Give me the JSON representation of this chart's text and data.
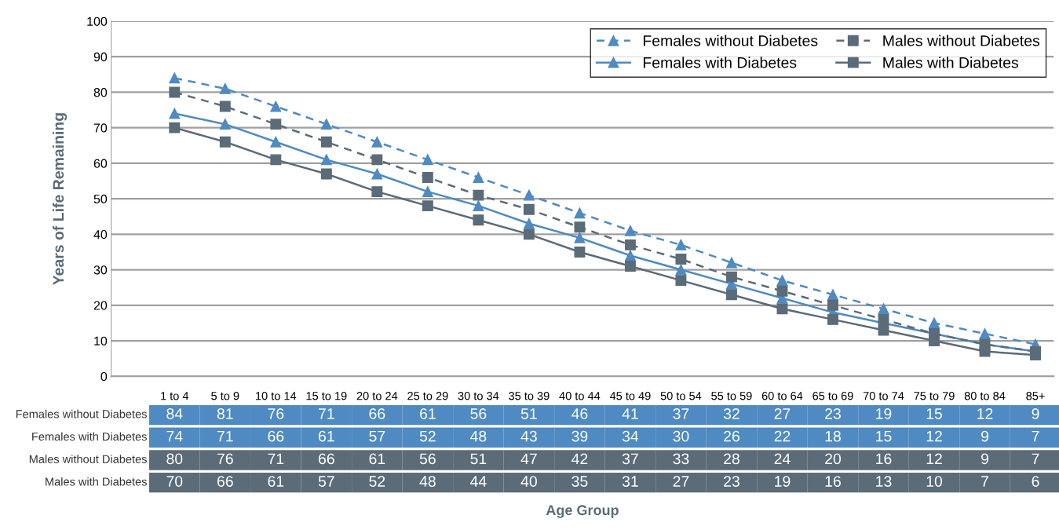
{
  "chart_data": {
    "type": "line",
    "ylabel": "Years of Life Remaining",
    "annotations": [
      "Age Group"
    ],
    "categories": [
      "1 to 4",
      "5 to 9",
      "10 to 14",
      "15 to 19",
      "20 to 24",
      "25 to 29",
      "30 to 34",
      "35 to 39",
      "40 to 44",
      "45 to 49",
      "50 to 54",
      "55 to 59",
      "60 to 64",
      "65 to 69",
      "70 to 74",
      "75 to 79",
      "80 to 84",
      "85+"
    ],
    "series": [
      {
        "name": "Females without Diabetes",
        "color": "#4f8ac2",
        "marker": "triangle",
        "line_style": "dashed",
        "values": [
          84,
          81,
          76,
          71,
          66,
          61,
          56,
          51,
          46,
          41,
          37,
          32,
          27,
          23,
          19,
          15,
          12,
          9
        ]
      },
      {
        "name": "Females with Diabetes",
        "color": "#4f8ac2",
        "marker": "triangle",
        "line_style": "solid",
        "values": [
          74,
          71,
          66,
          61,
          57,
          52,
          48,
          43,
          39,
          34,
          30,
          26,
          22,
          18,
          15,
          12,
          9,
          7
        ]
      },
      {
        "name": "Males without Diabetes",
        "color": "#5b6b78",
        "marker": "square",
        "line_style": "dashed",
        "values": [
          80,
          76,
          71,
          66,
          61,
          56,
          51,
          47,
          42,
          37,
          33,
          28,
          24,
          20,
          16,
          12,
          9,
          7
        ]
      },
      {
        "name": "Males with Diabetes",
        "color": "#5b6b78",
        "marker": "square",
        "line_style": "solid",
        "values": [
          70,
          66,
          61,
          57,
          52,
          48,
          44,
          40,
          35,
          31,
          27,
          23,
          19,
          16,
          13,
          10,
          7,
          6
        ]
      }
    ],
    "ylim": [
      0,
      100
    ],
    "yticks": [
      0,
      10,
      20,
      30,
      40,
      50,
      60,
      70,
      80,
      90,
      100
    ],
    "grid": "y",
    "legend": "top right",
    "data_labels": true
  }
}
